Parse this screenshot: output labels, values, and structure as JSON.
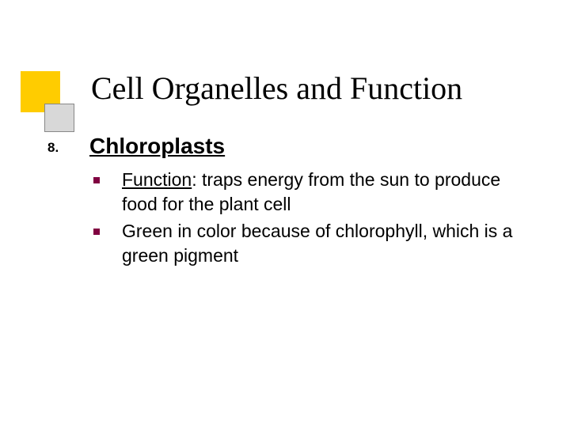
{
  "colors": {
    "accent_yellow": "#ffcc00",
    "accent_gray": "#d8d8d8",
    "bullet_color": "#800040",
    "text_color": "#000000",
    "background": "#ffffff"
  },
  "typography": {
    "title_font": "Times New Roman",
    "body_font": "Verdana",
    "title_size_pt": 30,
    "subheading_size_pt": 21,
    "body_size_pt": 17,
    "listnum_size_pt": 13
  },
  "title": "Cell Organelles and Function",
  "list_number": "8.",
  "subheading": "Chloroplasts",
  "bullets": [
    {
      "underlined": "Function",
      "rest": ":  traps energy from the sun to produce food for the plant cell"
    },
    {
      "underlined": "",
      "rest": "Green in color because of chlorophyll, which is a green pigment"
    }
  ]
}
